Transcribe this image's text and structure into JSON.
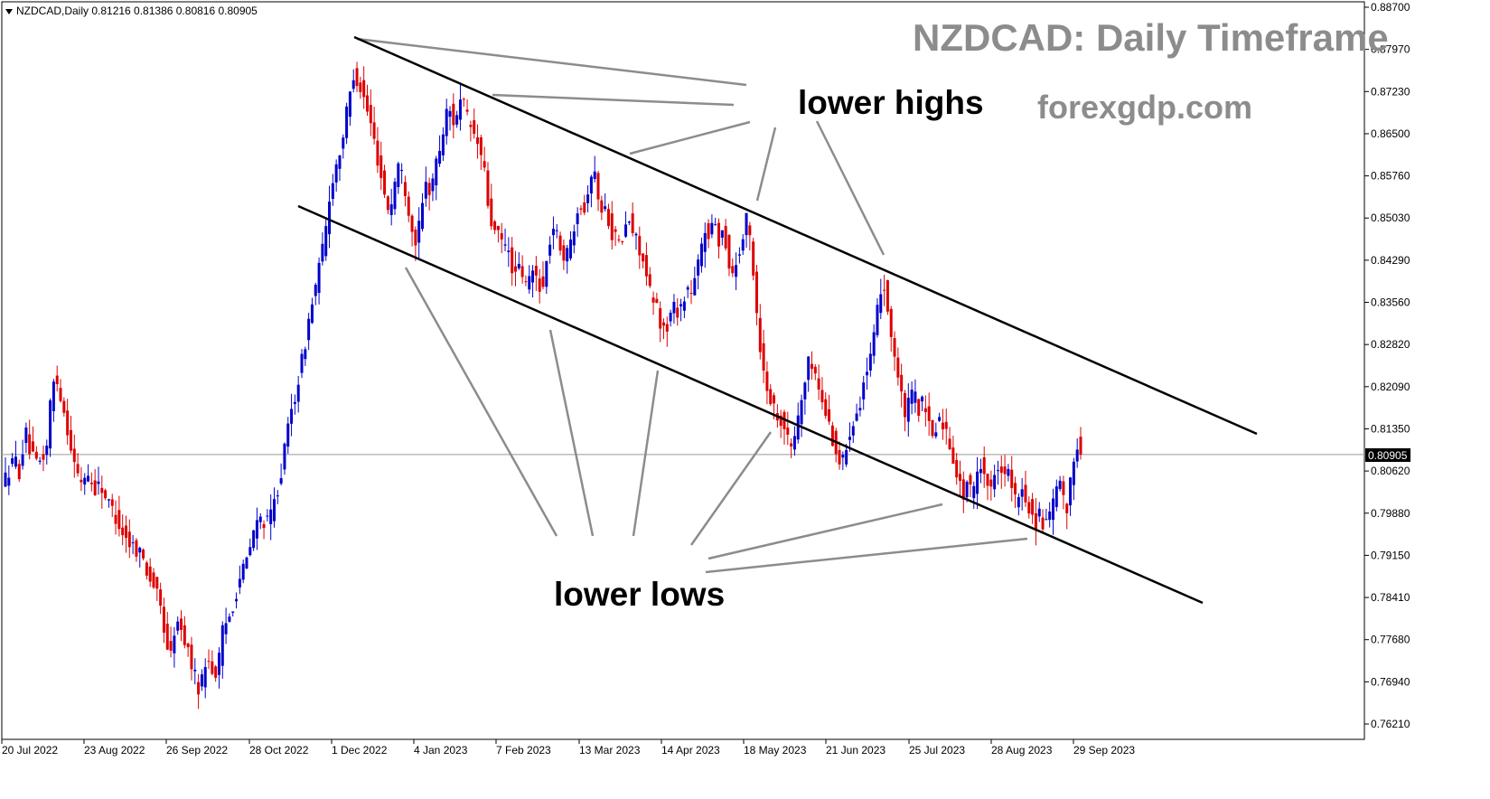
{
  "header": {
    "symbol_info": "NZDCAD,Daily  0.81216 0.81386 0.80816 0.80905"
  },
  "title": "NZDCAD: Daily Timeframe",
  "website": "forexgdp.com",
  "annotations": {
    "upper": "lower highs",
    "lower": "lower lows"
  },
  "colors": {
    "bull": "#0000cc",
    "bear": "#dd0000",
    "trendline": "#000000",
    "pointer": "#8c8c8c",
    "text": "#8c8c8c"
  },
  "chart_data": {
    "type": "candlestick",
    "title": "NZDCAD: Daily Timeframe",
    "ylim": [
      0.758,
      0.887
    ],
    "y_ticks": [
      "0.88700",
      "0.87970",
      "0.87230",
      "0.86500",
      "0.85760",
      "0.85030",
      "0.84290",
      "0.83560",
      "0.82820",
      "0.82090",
      "0.81350",
      "0.80620",
      "0.79880",
      "0.79150",
      "0.78410",
      "0.77680",
      "0.76940",
      "0.76210"
    ],
    "x_ticks": [
      "20 Jul 2022",
      "23 Aug 2022",
      "26 Sep 2022",
      "28 Oct 2022",
      "1 Dec 2022",
      "4 Jan 2023",
      "7 Feb 2023",
      "13 Mar 2023",
      "14 Apr 2023",
      "18 May 2023",
      "21 Jun 2023",
      "25 Jul 2023",
      "28 Aug 2023",
      "29 Sep 2023"
    ],
    "current_price": "0.80905",
    "last_bar": {
      "open": 0.81216,
      "high": 0.81386,
      "low": 0.80816,
      "close": 0.80905
    },
    "grid": false,
    "price_path": [
      [
        0,
        0.804
      ],
      [
        10,
        0.805
      ],
      [
        20,
        0.8085
      ],
      [
        25,
        0.806
      ],
      [
        32,
        0.813
      ],
      [
        38,
        0.809
      ],
      [
        45,
        0.807
      ],
      [
        55,
        0.8095
      ],
      [
        60,
        0.819
      ],
      [
        65,
        0.823
      ],
      [
        70,
        0.82
      ],
      [
        78,
        0.814
      ],
      [
        85,
        0.808
      ],
      [
        92,
        0.804
      ],
      [
        100,
        0.806
      ],
      [
        108,
        0.803
      ],
      [
        115,
        0.804
      ],
      [
        122,
        0.801
      ],
      [
        130,
        0.799
      ],
      [
        138,
        0.796
      ],
      [
        145,
        0.794
      ],
      [
        152,
        0.793
      ],
      [
        160,
        0.792
      ],
      [
        168,
        0.788
      ],
      [
        175,
        0.786
      ],
      [
        182,
        0.782
      ],
      [
        188,
        0.776
      ],
      [
        193,
        0.774
      ],
      [
        198,
        0.78
      ],
      [
        205,
        0.778
      ],
      [
        210,
        0.776
      ],
      [
        215,
        0.773
      ],
      [
        220,
        0.77
      ],
      [
        225,
        0.768
      ],
      [
        230,
        0.772
      ],
      [
        235,
        0.774
      ],
      [
        240,
        0.77
      ],
      [
        245,
        0.772
      ],
      [
        250,
        0.778
      ],
      [
        255,
        0.78
      ],
      [
        260,
        0.782
      ],
      [
        265,
        0.785
      ],
      [
        270,
        0.788
      ],
      [
        278,
        0.791
      ],
      [
        285,
        0.796
      ],
      [
        292,
        0.798
      ],
      [
        300,
        0.797
      ],
      [
        308,
        0.801
      ],
      [
        315,
        0.806
      ],
      [
        320,
        0.811
      ],
      [
        325,
        0.816
      ],
      [
        330,
        0.819
      ],
      [
        335,
        0.823
      ],
      [
        340,
        0.827
      ],
      [
        345,
        0.832
      ],
      [
        350,
        0.836
      ],
      [
        355,
        0.84
      ],
      [
        360,
        0.844
      ],
      [
        365,
        0.849
      ],
      [
        370,
        0.856
      ],
      [
        375,
        0.859
      ],
      [
        380,
        0.862
      ],
      [
        385,
        0.866
      ],
      [
        390,
        0.871
      ],
      [
        396,
        0.876
      ],
      [
        400,
        0.874
      ],
      [
        405,
        0.872
      ],
      [
        410,
        0.869
      ],
      [
        415,
        0.866
      ],
      [
        420,
        0.862
      ],
      [
        425,
        0.858
      ],
      [
        430,
        0.854
      ],
      [
        435,
        0.851
      ],
      [
        440,
        0.856
      ],
      [
        445,
        0.86
      ],
      [
        450,
        0.857
      ],
      [
        455,
        0.853
      ],
      [
        460,
        0.848
      ],
      [
        465,
        0.846
      ],
      [
        470,
        0.851
      ],
      [
        475,
        0.856
      ],
      [
        480,
        0.855
      ],
      [
        485,
        0.859
      ],
      [
        490,
        0.862
      ],
      [
        495,
        0.866
      ],
      [
        500,
        0.87
      ],
      [
        505,
        0.867
      ],
      [
        510,
        0.869
      ],
      [
        515,
        0.871
      ],
      [
        520,
        0.868
      ],
      [
        525,
        0.866
      ],
      [
        530,
        0.864
      ],
      [
        535,
        0.862
      ],
      [
        540,
        0.858
      ],
      [
        545,
        0.851
      ],
      [
        550,
        0.848
      ],
      [
        555,
        0.847
      ],
      [
        560,
        0.846
      ],
      [
        565,
        0.845
      ],
      [
        570,
        0.842
      ],
      [
        575,
        0.84
      ],
      [
        580,
        0.842
      ],
      [
        585,
        0.838
      ],
      [
        590,
        0.84
      ],
      [
        595,
        0.841
      ],
      [
        600,
        0.839
      ],
      [
        605,
        0.838
      ],
      [
        610,
        0.844
      ],
      [
        615,
        0.849
      ],
      [
        620,
        0.847
      ],
      [
        625,
        0.845
      ],
      [
        630,
        0.843
      ],
      [
        635,
        0.846
      ],
      [
        640,
        0.85
      ],
      [
        645,
        0.854
      ],
      [
        650,
        0.851
      ],
      [
        655,
        0.856
      ],
      [
        660,
        0.859
      ],
      [
        665,
        0.855
      ],
      [
        670,
        0.851
      ],
      [
        675,
        0.852
      ],
      [
        680,
        0.848
      ],
      [
        685,
        0.847
      ],
      [
        690,
        0.845
      ],
      [
        695,
        0.848
      ],
      [
        700,
        0.85
      ],
      [
        705,
        0.847
      ],
      [
        710,
        0.846
      ],
      [
        715,
        0.843
      ],
      [
        720,
        0.839
      ],
      [
        725,
        0.836
      ],
      [
        730,
        0.835
      ],
      [
        735,
        0.832
      ],
      [
        740,
        0.83
      ],
      [
        745,
        0.833
      ],
      [
        750,
        0.835
      ],
      [
        755,
        0.834
      ],
      [
        760,
        0.836
      ],
      [
        765,
        0.838
      ],
      [
        770,
        0.837
      ],
      [
        775,
        0.841
      ],
      [
        780,
        0.845
      ],
      [
        785,
        0.849
      ],
      [
        790,
        0.847
      ],
      [
        795,
        0.85
      ],
      [
        800,
        0.846
      ],
      [
        805,
        0.849
      ],
      [
        810,
        0.842
      ],
      [
        815,
        0.841
      ],
      [
        820,
        0.843
      ],
      [
        825,
        0.846
      ],
      [
        830,
        0.85
      ],
      [
        835,
        0.846
      ],
      [
        840,
        0.836
      ],
      [
        845,
        0.828
      ],
      [
        850,
        0.822
      ],
      [
        855,
        0.82
      ],
      [
        860,
        0.817
      ],
      [
        865,
        0.816
      ],
      [
        870,
        0.815
      ],
      [
        875,
        0.812
      ],
      [
        880,
        0.81
      ],
      [
        885,
        0.814
      ],
      [
        890,
        0.818
      ],
      [
        895,
        0.822
      ],
      [
        900,
        0.826
      ],
      [
        905,
        0.824
      ],
      [
        910,
        0.82
      ],
      [
        915,
        0.818
      ],
      [
        920,
        0.815
      ],
      [
        925,
        0.812
      ],
      [
        930,
        0.809
      ],
      [
        935,
        0.807
      ],
      [
        940,
        0.81
      ],
      [
        945,
        0.814
      ],
      [
        950,
        0.816
      ],
      [
        955,
        0.818
      ],
      [
        960,
        0.822
      ],
      [
        965,
        0.824
      ],
      [
        970,
        0.828
      ],
      [
        975,
        0.834
      ],
      [
        980,
        0.84
      ],
      [
        985,
        0.836
      ],
      [
        990,
        0.83
      ],
      [
        995,
        0.825
      ],
      [
        1000,
        0.82
      ],
      [
        1005,
        0.816
      ],
      [
        1010,
        0.818
      ],
      [
        1015,
        0.82
      ],
      [
        1020,
        0.817
      ],
      [
        1025,
        0.818
      ],
      [
        1030,
        0.815
      ],
      [
        1035,
        0.812
      ],
      [
        1040,
        0.814
      ],
      [
        1045,
        0.816
      ],
      [
        1050,
        0.813
      ],
      [
        1055,
        0.811
      ],
      [
        1060,
        0.808
      ],
      [
        1065,
        0.804
      ],
      [
        1070,
        0.802
      ],
      [
        1075,
        0.805
      ],
      [
        1080,
        0.801
      ],
      [
        1085,
        0.806
      ],
      [
        1090,
        0.808
      ],
      [
        1095,
        0.805
      ],
      [
        1100,
        0.802
      ],
      [
        1105,
        0.807
      ],
      [
        1110,
        0.808
      ],
      [
        1115,
        0.805
      ],
      [
        1120,
        0.806
      ],
      [
        1125,
        0.802
      ],
      [
        1130,
        0.8
      ],
      [
        1135,
        0.803
      ],
      [
        1140,
        0.801
      ],
      [
        1145,
        0.799
      ],
      [
        1150,
        0.797
      ],
      [
        1155,
        0.799
      ],
      [
        1160,
        0.796
      ],
      [
        1165,
        0.798
      ],
      [
        1170,
        0.801
      ],
      [
        1175,
        0.804
      ],
      [
        1180,
        0.802
      ],
      [
        1185,
        0.799
      ],
      [
        1190,
        0.806
      ],
      [
        1195,
        0.812
      ],
      [
        1198,
        0.8091
      ]
    ]
  }
}
